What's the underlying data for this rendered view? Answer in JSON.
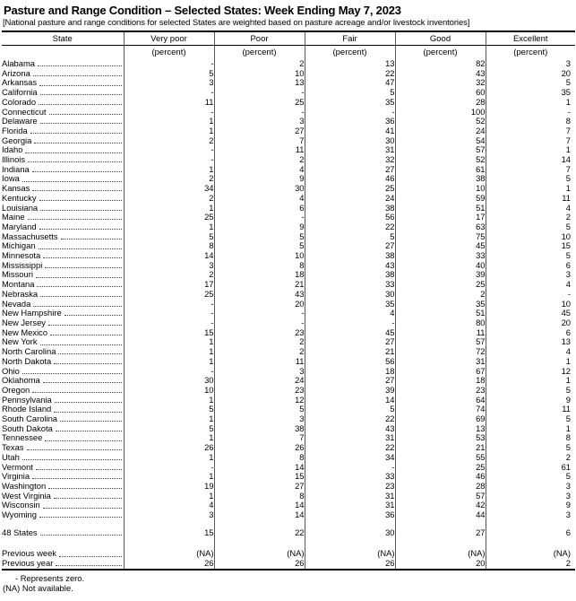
{
  "title": "Pasture and Range Condition – Selected States: Week Ending May 7, 2023",
  "note": "[National pasture and range conditions for selected States are weighted based on pasture acreage and/or livestock inventories]",
  "table": {
    "columns": [
      "State",
      "Very poor",
      "Poor",
      "Fair",
      "Good",
      "Excellent"
    ],
    "unit_label": "(percent)",
    "rows": [
      {
        "state": "Alabama",
        "values": [
          "-",
          "2",
          "13",
          "82",
          "3"
        ]
      },
      {
        "state": "Arizona",
        "values": [
          "5",
          "10",
          "22",
          "43",
          "20"
        ]
      },
      {
        "state": "Arkansas",
        "values": [
          "3",
          "13",
          "47",
          "32",
          "5"
        ]
      },
      {
        "state": "California",
        "values": [
          "-",
          "-",
          "5",
          "60",
          "35"
        ]
      },
      {
        "state": "Colorado",
        "values": [
          "11",
          "25",
          "35",
          "28",
          "1"
        ]
      },
      {
        "state": "Connecticut",
        "values": [
          "-",
          "-",
          "-",
          "100",
          "-"
        ]
      },
      {
        "state": "Delaware",
        "values": [
          "1",
          "3",
          "36",
          "52",
          "8"
        ]
      },
      {
        "state": "Florida",
        "values": [
          "1",
          "27",
          "41",
          "24",
          "7"
        ]
      },
      {
        "state": "Georgia",
        "values": [
          "2",
          "7",
          "30",
          "54",
          "7"
        ]
      },
      {
        "state": "Idaho",
        "values": [
          "-",
          "11",
          "31",
          "57",
          "1"
        ]
      },
      {
        "state": "Illinois",
        "values": [
          "-",
          "2",
          "32",
          "52",
          "14"
        ]
      },
      {
        "state": "Indiana",
        "values": [
          "1",
          "4",
          "27",
          "61",
          "7"
        ]
      },
      {
        "state": "Iowa",
        "values": [
          "2",
          "9",
          "46",
          "38",
          "5"
        ]
      },
      {
        "state": "Kansas",
        "values": [
          "34",
          "30",
          "25",
          "10",
          "1"
        ]
      },
      {
        "state": "Kentucky",
        "values": [
          "2",
          "4",
          "24",
          "59",
          "11"
        ]
      },
      {
        "state": "Louisiana",
        "values": [
          "1",
          "6",
          "38",
          "51",
          "4"
        ]
      },
      {
        "state": "Maine",
        "values": [
          "25",
          "-",
          "56",
          "17",
          "2"
        ]
      },
      {
        "state": "Maryland",
        "values": [
          "1",
          "9",
          "22",
          "63",
          "5"
        ]
      },
      {
        "state": "Massachusetts",
        "values": [
          "5",
          "5",
          "5",
          "75",
          "10"
        ]
      },
      {
        "state": "Michigan",
        "values": [
          "8",
          "5",
          "27",
          "45",
          "15"
        ]
      },
      {
        "state": "Minnesota",
        "values": [
          "14",
          "10",
          "38",
          "33",
          "5"
        ]
      },
      {
        "state": "Mississippi",
        "values": [
          "3",
          "8",
          "43",
          "40",
          "6"
        ]
      },
      {
        "state": "Missouri",
        "values": [
          "2",
          "18",
          "38",
          "39",
          "3"
        ]
      },
      {
        "state": "Montana",
        "values": [
          "17",
          "21",
          "33",
          "25",
          "4"
        ]
      },
      {
        "state": "Nebraska",
        "values": [
          "25",
          "43",
          "30",
          "2",
          "-"
        ]
      },
      {
        "state": "Nevada",
        "values": [
          "-",
          "20",
          "35",
          "35",
          "10"
        ]
      },
      {
        "state": "New Hampshire",
        "values": [
          "-",
          "-",
          "4",
          "51",
          "45"
        ]
      },
      {
        "state": "New Jersey",
        "values": [
          "-",
          "-",
          "-",
          "80",
          "20"
        ]
      },
      {
        "state": "New Mexico",
        "values": [
          "15",
          "23",
          "45",
          "11",
          "6"
        ]
      },
      {
        "state": "New York",
        "values": [
          "1",
          "2",
          "27",
          "57",
          "13"
        ]
      },
      {
        "state": "North Carolina",
        "values": [
          "1",
          "2",
          "21",
          "72",
          "4"
        ]
      },
      {
        "state": "North Dakota",
        "values": [
          "1",
          "11",
          "56",
          "31",
          "1"
        ]
      },
      {
        "state": "Ohio",
        "values": [
          "-",
          "3",
          "18",
          "67",
          "12"
        ]
      },
      {
        "state": "Oklahoma",
        "values": [
          "30",
          "24",
          "27",
          "18",
          "1"
        ]
      },
      {
        "state": "Oregon",
        "values": [
          "10",
          "23",
          "39",
          "23",
          "5"
        ]
      },
      {
        "state": "Pennsylvania",
        "values": [
          "1",
          "12",
          "14",
          "64",
          "9"
        ]
      },
      {
        "state": "Rhode Island",
        "values": [
          "5",
          "5",
          "5",
          "74",
          "11"
        ]
      },
      {
        "state": "South Carolina",
        "values": [
          "1",
          "3",
          "22",
          "69",
          "5"
        ]
      },
      {
        "state": "South Dakota",
        "values": [
          "5",
          "38",
          "43",
          "13",
          "1"
        ]
      },
      {
        "state": "Tennessee",
        "values": [
          "1",
          "7",
          "31",
          "53",
          "8"
        ]
      },
      {
        "state": "Texas",
        "values": [
          "26",
          "26",
          "22",
          "21",
          "5"
        ]
      },
      {
        "state": "Utah",
        "values": [
          "1",
          "8",
          "34",
          "55",
          "2"
        ]
      },
      {
        "state": "Vermont",
        "values": [
          "-",
          "14",
          "-",
          "25",
          "61"
        ]
      },
      {
        "state": "Virginia",
        "values": [
          "1",
          "15",
          "33",
          "46",
          "5"
        ]
      },
      {
        "state": "Washington",
        "values": [
          "19",
          "27",
          "23",
          "28",
          "3"
        ]
      },
      {
        "state": "West Virginia",
        "values": [
          "1",
          "8",
          "31",
          "57",
          "3"
        ]
      },
      {
        "state": "Wisconsin",
        "values": [
          "4",
          "14",
          "31",
          "42",
          "9"
        ]
      },
      {
        "state": "Wyoming",
        "values": [
          "3",
          "14",
          "36",
          "44",
          "3"
        ]
      }
    ],
    "summary_row": {
      "state": "48 States",
      "values": [
        "15",
        "22",
        "30",
        "27",
        "6"
      ]
    },
    "history_rows": [
      {
        "state": "Previous week",
        "values": [
          "(NA)",
          "(NA)",
          "(NA)",
          "(NA)",
          "(NA)"
        ]
      },
      {
        "state": "Previous year",
        "values": [
          "26",
          "26",
          "26",
          "20",
          "2"
        ]
      }
    ]
  },
  "footnotes": [
    "- Represents zero.",
    "(NA) Not available."
  ]
}
